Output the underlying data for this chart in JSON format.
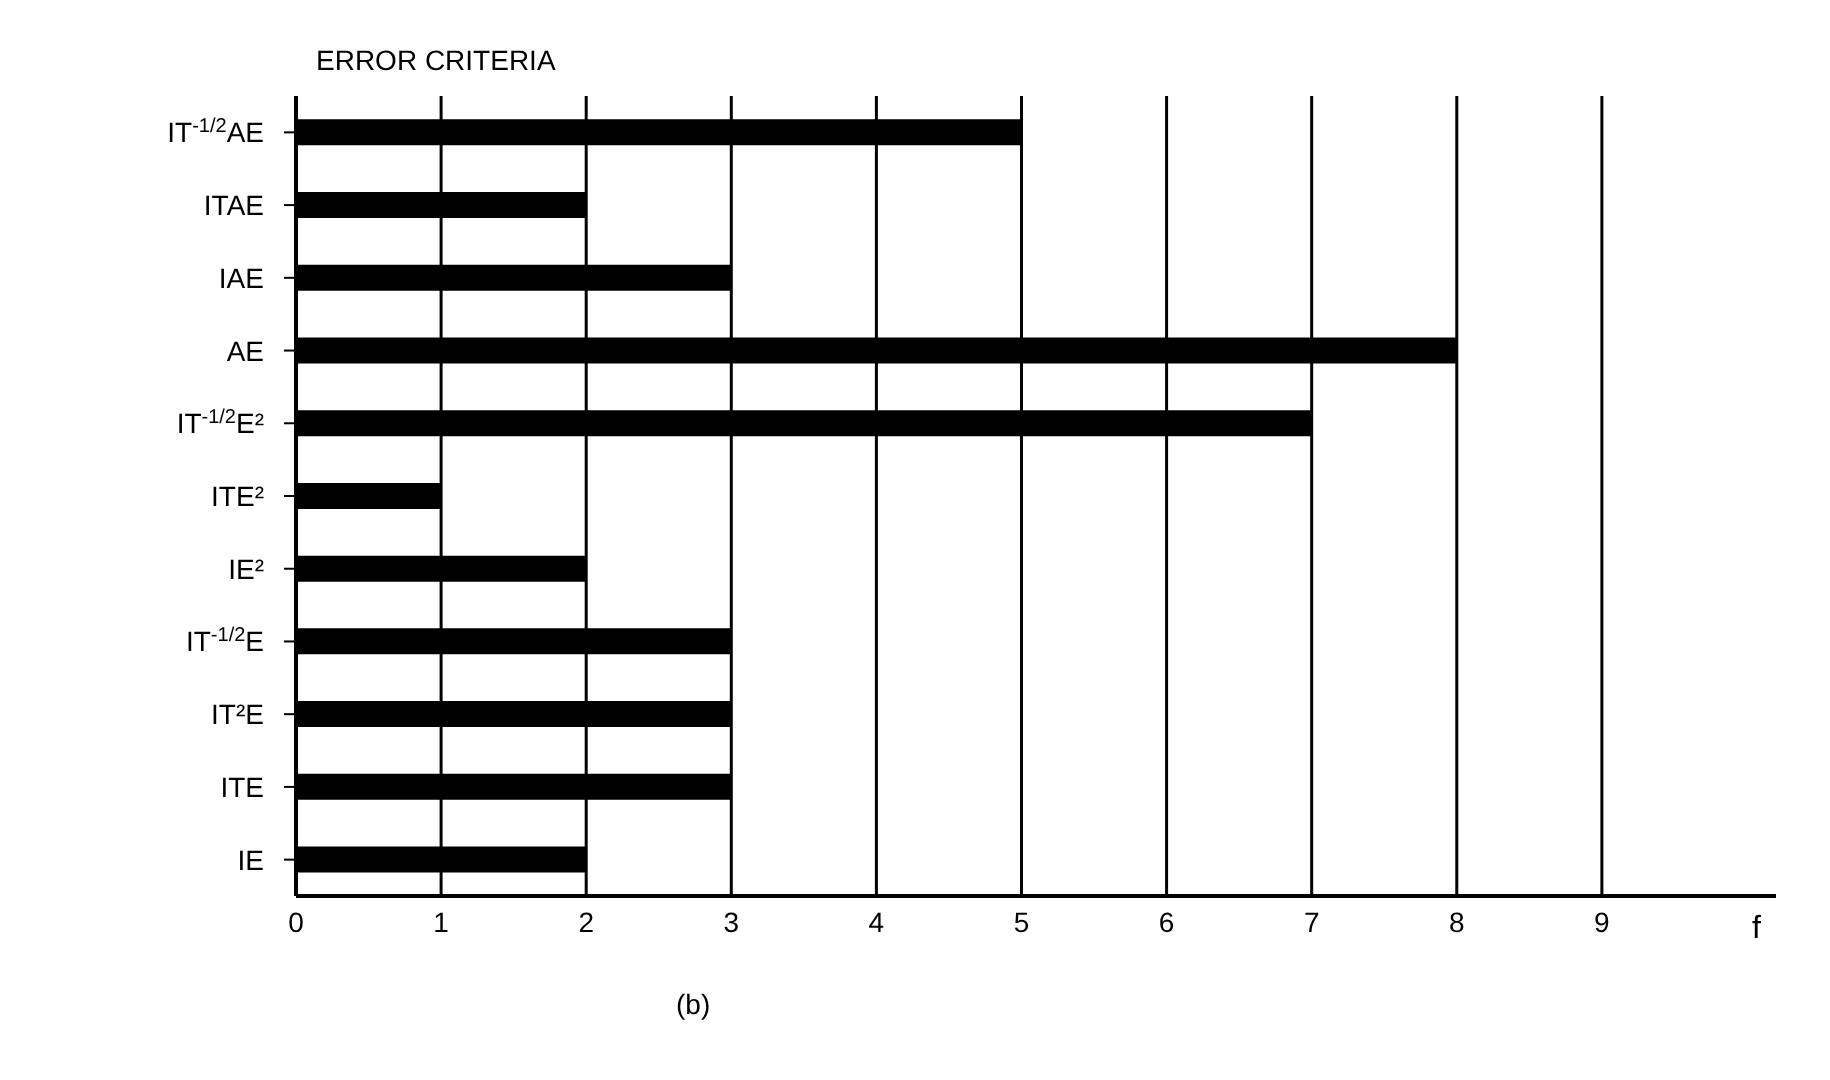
{
  "chart_data": {
    "type": "bar",
    "orientation": "horizontal",
    "ylabel": "ERROR CRITERIA",
    "xlabel": "f",
    "categories": [
      "IT$^{-1/2}$AE",
      "ITAE",
      "IAE",
      "AE",
      "IT$^{-1/2}$E²",
      "ITE²",
      "IE²",
      "IT$^{-1/2}$E",
      "IT²E",
      "ITE",
      "IE"
    ],
    "values": [
      5,
      2,
      3,
      8,
      7,
      1,
      2,
      3,
      3,
      3,
      2
    ],
    "color": "#000000",
    "xlim": [
      0,
      10.2
    ],
    "xticks": [
      0,
      1,
      2,
      3,
      4,
      5,
      6,
      7,
      8,
      9
    ],
    "grid": "x",
    "annotations": [
      "(b)"
    ]
  }
}
